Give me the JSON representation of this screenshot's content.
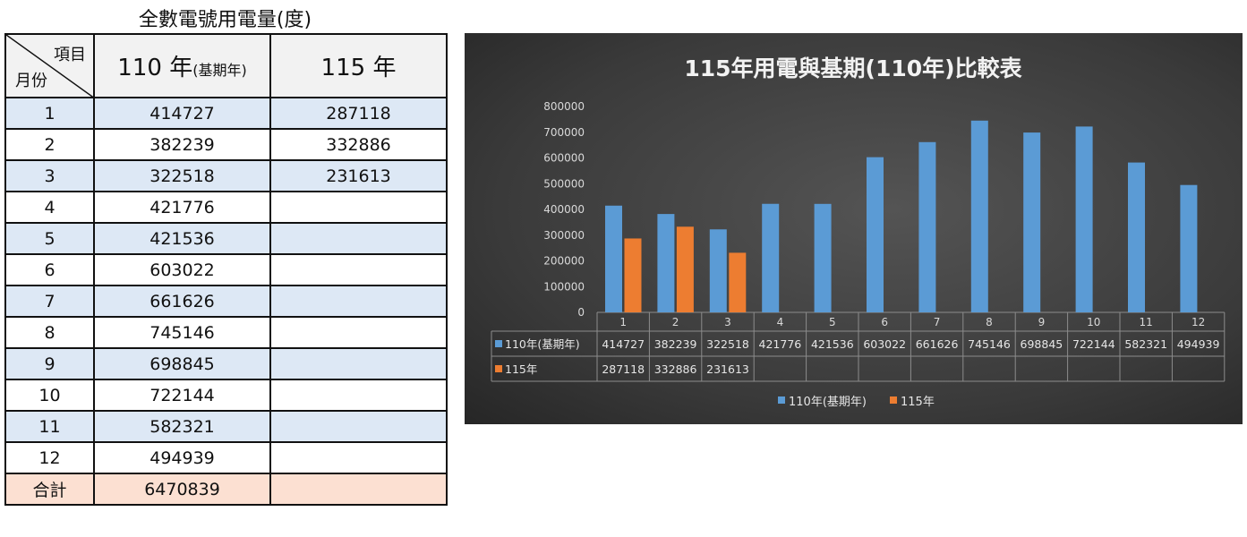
{
  "table": {
    "title": "全數電號用電量(度)",
    "corner_top": "項目",
    "corner_bottom": "月份",
    "col1_main": "110 年",
    "col1_sub": "(基期年)",
    "col2": "115 年",
    "rows": [
      {
        "month": "1",
        "y110": "414727",
        "y115": "287118"
      },
      {
        "month": "2",
        "y110": "382239",
        "y115": "332886"
      },
      {
        "month": "3",
        "y110": "322518",
        "y115": "231613"
      },
      {
        "month": "4",
        "y110": "421776",
        "y115": ""
      },
      {
        "month": "5",
        "y110": "421536",
        "y115": ""
      },
      {
        "month": "6",
        "y110": "603022",
        "y115": ""
      },
      {
        "month": "7",
        "y110": "661626",
        "y115": ""
      },
      {
        "month": "8",
        "y110": "745146",
        "y115": ""
      },
      {
        "month": "9",
        "y110": "698845",
        "y115": ""
      },
      {
        "month": "10",
        "y110": "722144",
        "y115": ""
      },
      {
        "month": "11",
        "y110": "582321",
        "y115": ""
      },
      {
        "month": "12",
        "y110": "494939",
        "y115": ""
      }
    ],
    "total_label": "合計",
    "total_110": "6470839",
    "total_115": ""
  },
  "chart_data": {
    "type": "bar",
    "title": "115年用電與基期(110年)比較表",
    "categories": [
      "1",
      "2",
      "3",
      "4",
      "5",
      "6",
      "7",
      "8",
      "9",
      "10",
      "11",
      "12"
    ],
    "series": [
      {
        "name": "110年(基期年)",
        "color": "#5b9bd5",
        "values": [
          414727,
          382239,
          322518,
          421776,
          421536,
          603022,
          661626,
          745146,
          698845,
          722144,
          582321,
          494939
        ]
      },
      {
        "name": "115年",
        "color": "#ed7d31",
        "values": [
          287118,
          332886,
          231613,
          null,
          null,
          null,
          null,
          null,
          null,
          null,
          null,
          null
        ]
      }
    ],
    "ylim": [
      0,
      800000
    ],
    "yticks": [
      "0",
      "100000",
      "200000",
      "300000",
      "400000",
      "500000",
      "600000",
      "700000",
      "800000"
    ],
    "data_table": true,
    "legend": "bottom",
    "background": "dark"
  }
}
